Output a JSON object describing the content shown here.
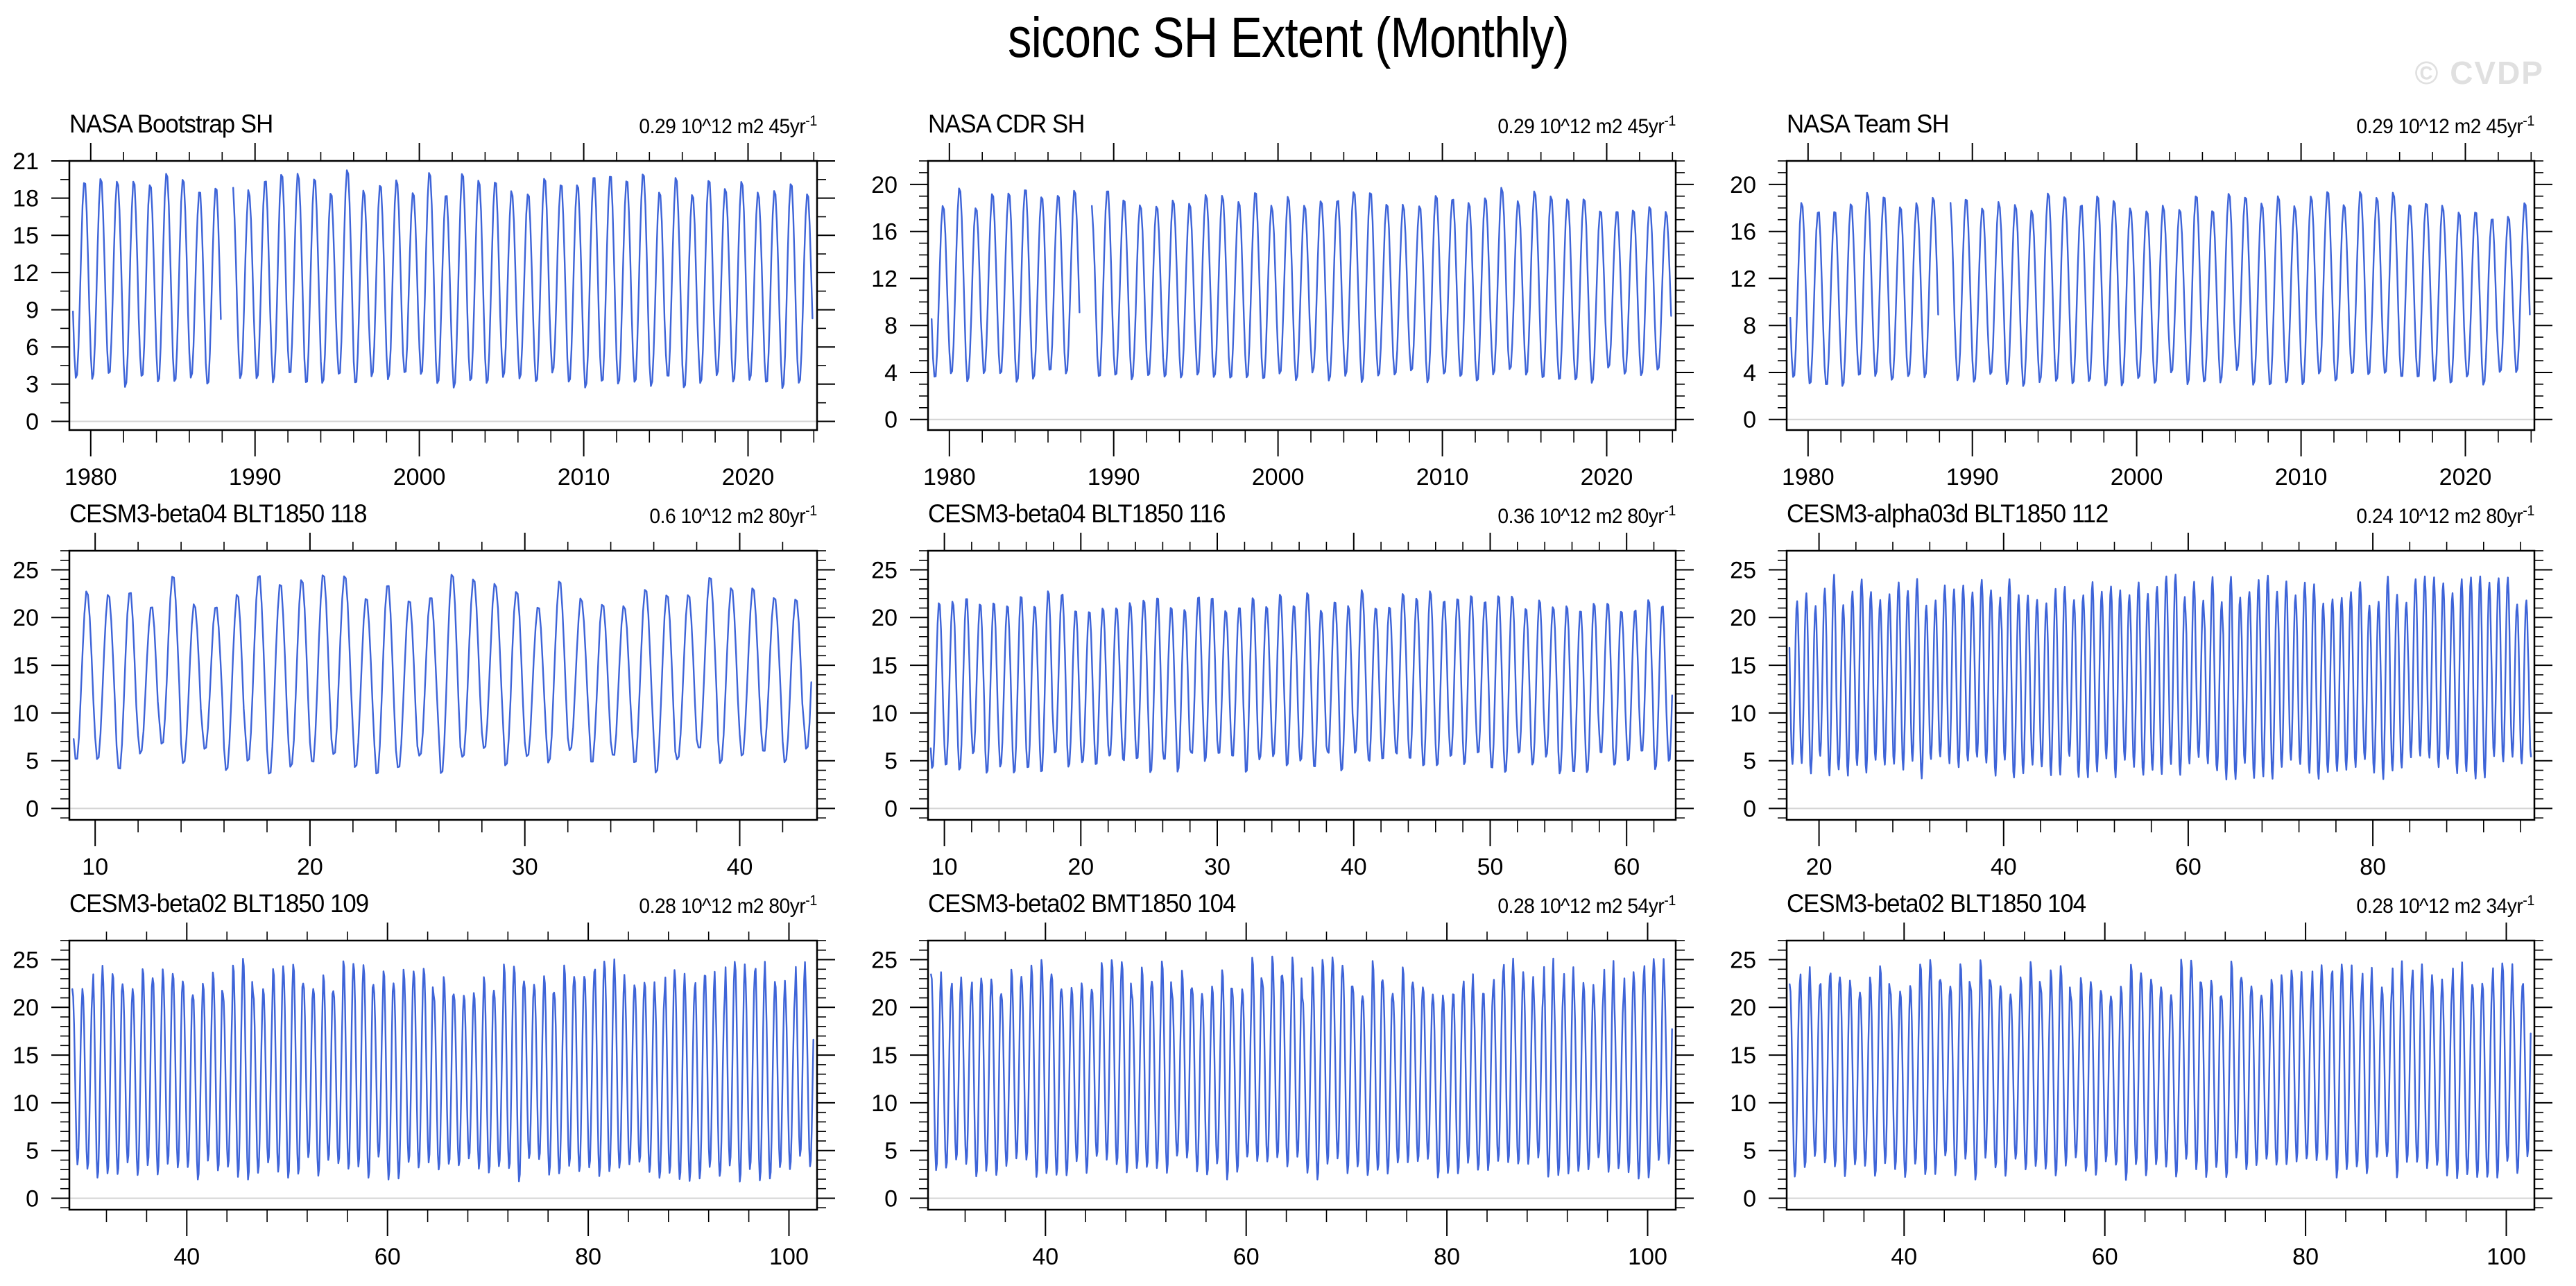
{
  "page": {
    "title": "siconc SH Extent (Monthly)",
    "watermark": "© CVDP"
  },
  "colors": {
    "line": "#3e64d8",
    "zero_line": "#d4d4d4",
    "frame": "#000000",
    "tick": "#000000",
    "watermark": "#e0e0e0"
  },
  "chart_data": [
    {
      "type": "line",
      "title": "NASA Bootstrap SH",
      "trend_label": "0.29 10^12 m2 45yr",
      "trend_sup": "-1",
      "x_range": [
        1978.7,
        2024.2
      ],
      "x_ticks": [
        1980,
        1990,
        2000,
        2010,
        2020
      ],
      "x_minor_step": 2,
      "y_range": [
        -0.7,
        21
      ],
      "y_ticks": [
        0,
        3,
        6,
        9,
        12,
        15,
        18,
        21
      ],
      "y_minor_step": 1.5,
      "series": {
        "start": 1978.92,
        "end": 2024.0,
        "points_per_year": 12,
        "min_range": [
          2.5,
          3.9
        ],
        "max_range": [
          18.4,
          20.5
        ],
        "gaps": [
          [
            1987.95,
            1988.6
          ]
        ],
        "decline_after": 2016,
        "decline": 0.8,
        "seed": 11
      }
    },
    {
      "type": "line",
      "title": "NASA CDR SH",
      "trend_label": "0.29 10^12 m2 45yr",
      "trend_sup": "-1",
      "x_range": [
        1978.7,
        2024.2
      ],
      "x_ticks": [
        1980,
        1990,
        2000,
        2010,
        2020
      ],
      "x_minor_step": 2,
      "y_range": [
        -0.9,
        22
      ],
      "y_ticks": [
        0,
        4,
        8,
        12,
        16,
        20
      ],
      "y_minor_step": 1,
      "series": {
        "start": 1978.92,
        "end": 2024.0,
        "points_per_year": 12,
        "min_range": [
          3.0,
          4.3
        ],
        "max_range": [
          18.2,
          19.9
        ],
        "gaps": [
          [
            1987.95,
            1988.6
          ]
        ],
        "decline_after": 2016,
        "decline": 0.7,
        "seed": 12
      }
    },
    {
      "type": "line",
      "title": "NASA Team SH",
      "trend_label": "0.29 10^12 m2 45yr",
      "trend_sup": "-1",
      "x_range": [
        1978.7,
        2024.2
      ],
      "x_ticks": [
        1980,
        1990,
        2000,
        2010,
        2020
      ],
      "x_minor_step": 2,
      "y_range": [
        -0.9,
        22
      ],
      "y_ticks": [
        0,
        4,
        8,
        12,
        16,
        20
      ],
      "y_minor_step": 1,
      "series": {
        "start": 1978.92,
        "end": 2024.0,
        "points_per_year": 12,
        "min_range": [
          2.7,
          4.1
        ],
        "max_range": [
          17.8,
          19.6
        ],
        "gaps": [
          [
            1987.95,
            1988.6
          ]
        ],
        "decline_after": 2016,
        "decline": 0.7,
        "seed": 13
      }
    },
    {
      "type": "line",
      "title": "CESM3-beta04 BLT1850 118",
      "trend_label": "0.6 10^12 m2 80yr",
      "trend_sup": "-1",
      "x_range": [
        8.8,
        43.6
      ],
      "x_ticks": [
        10,
        20,
        30,
        40
      ],
      "x_minor_step": 2,
      "y_range": [
        -1.2,
        27
      ],
      "y_ticks": [
        0,
        5,
        10,
        15,
        20,
        25
      ],
      "y_minor_step": 1,
      "series": {
        "start": 9.0,
        "end": 43.4,
        "points_per_year": 12,
        "min_range": [
          3.2,
          6.8
        ],
        "max_range": [
          21.3,
          24.9
        ],
        "gaps": [],
        "seed": 14
      }
    },
    {
      "type": "line",
      "title": "CESM3-beta04 BLT1850 116",
      "trend_label": "0.36 10^12 m2 80yr",
      "trend_sup": "-1",
      "x_range": [
        8.8,
        63.6
      ],
      "x_ticks": [
        10,
        20,
        30,
        40,
        50,
        60
      ],
      "x_minor_step": 2,
      "y_range": [
        -1.2,
        27
      ],
      "y_ticks": [
        0,
        5,
        10,
        15,
        20,
        25
      ],
      "y_minor_step": 1,
      "series": {
        "start": 9.0,
        "end": 63.4,
        "points_per_year": 12,
        "min_range": [
          3.4,
          5.8
        ],
        "max_range": [
          20.8,
          23.0
        ],
        "gaps": [],
        "seed": 15
      }
    },
    {
      "type": "line",
      "title": "CESM3-alpha03d BLT1850 112",
      "trend_label": "0.24 10^12 m2 80yr",
      "trend_sup": "-1",
      "x_range": [
        16.5,
        97.5
      ],
      "x_ticks": [
        20,
        40,
        60,
        80
      ],
      "x_minor_step": 4,
      "y_range": [
        -1.2,
        27
      ],
      "y_ticks": [
        0,
        5,
        10,
        15,
        20,
        25
      ],
      "y_minor_step": 1,
      "series": {
        "start": 16.8,
        "end": 97.2,
        "points_per_year": 12,
        "min_range": [
          2.8,
          5.5
        ],
        "max_range": [
          21.3,
          24.6
        ],
        "gaps": [],
        "seed": 16
      }
    },
    {
      "type": "line",
      "title": "CESM3-beta02 BLT1850 109",
      "trend_label": "0.28 10^12 m2 80yr",
      "trend_sup": "-1",
      "x_range": [
        28.3,
        102.8
      ],
      "x_ticks": [
        40,
        60,
        80,
        100
      ],
      "x_minor_step": 4,
      "y_range": [
        -1.2,
        27
      ],
      "y_ticks": [
        0,
        5,
        10,
        15,
        20,
        25
      ],
      "y_minor_step": 1,
      "series": {
        "start": 28.6,
        "end": 102.5,
        "points_per_year": 12,
        "min_range": [
          1.7,
          4.3
        ],
        "max_range": [
          21.2,
          25.3
        ],
        "gaps": [],
        "seed": 17
      }
    },
    {
      "type": "line",
      "title": "CESM3-beta02 BMT1850 104",
      "trend_label": "0.28 10^12 m2 54yr",
      "trend_sup": "-1",
      "x_range": [
        28.3,
        102.8
      ],
      "x_ticks": [
        40,
        60,
        80,
        100
      ],
      "x_minor_step": 4,
      "y_range": [
        -1.2,
        27
      ],
      "y_ticks": [
        0,
        5,
        10,
        15,
        20,
        25
      ],
      "y_minor_step": 1,
      "series": {
        "start": 28.6,
        "end": 102.5,
        "points_per_year": 12,
        "min_range": [
          1.8,
          4.4
        ],
        "max_range": [
          21.0,
          25.4
        ],
        "gaps": [],
        "seed": 18
      }
    },
    {
      "type": "line",
      "title": "CESM3-beta02 BLT1850 104",
      "trend_label": "0.28 10^12 m2 34yr",
      "trend_sup": "-1",
      "x_range": [
        28.3,
        102.8
      ],
      "x_ticks": [
        40,
        60,
        80,
        100
      ],
      "x_minor_step": 4,
      "y_range": [
        -1.2,
        27
      ],
      "y_ticks": [
        0,
        5,
        10,
        15,
        20,
        25
      ],
      "y_minor_step": 1,
      "series": {
        "start": 28.6,
        "end": 102.5,
        "points_per_year": 12,
        "min_range": [
          1.9,
          4.4
        ],
        "max_range": [
          21.2,
          25.2
        ],
        "gaps": [],
        "seed": 19
      }
    }
  ]
}
